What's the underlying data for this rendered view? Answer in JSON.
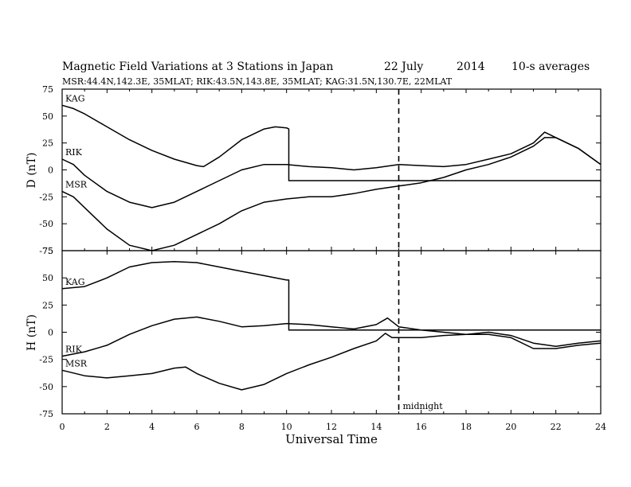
{
  "chart_data": {
    "type": "line",
    "title": "Magnetic Field Variations at 3 Stations in Japan",
    "title_date": "22 July",
    "title_year": "2014",
    "title_note": "10-s averages",
    "subtitle": "MSR:44.4N,142.3E, 35MLAT;  RIK:43.5N,143.8E, 35MLAT;  KAG:31.5N,130.7E, 22MLAT",
    "xlabel": "Universal Time",
    "xlim": [
      0,
      24
    ],
    "xticks": [
      "0",
      "2",
      "4",
      "6",
      "8",
      "10",
      "12",
      "14",
      "16",
      "18",
      "20",
      "22",
      "24"
    ],
    "midnight_marker": {
      "x": 15,
      "label": "midnight"
    },
    "panels": [
      {
        "ylabel": "D (nT)",
        "ylim": [
          -75,
          75
        ],
        "yticks": [
          "75",
          "50",
          "25",
          "0",
          "-25",
          "-50",
          "-75"
        ],
        "series": [
          {
            "name": "KAG",
            "points": [
              [
                0,
                60
              ],
              [
                0.5,
                57
              ],
              [
                1.0,
                52
              ],
              [
                2,
                40
              ],
              [
                3,
                28
              ],
              [
                4,
                18
              ],
              [
                5,
                10
              ],
              [
                6,
                4
              ],
              [
                6.3,
                3
              ],
              [
                7,
                12
              ],
              [
                8,
                28
              ],
              [
                9,
                38
              ],
              [
                9.5,
                40
              ],
              [
                10.0,
                39
              ],
              [
                10.1,
                38
              ],
              [
                10.1,
                -10
              ],
              [
                14,
                -10
              ],
              [
                18,
                -10
              ],
              [
                24,
                -10
              ]
            ]
          },
          {
            "name": "RIK",
            "points": [
              [
                0,
                10
              ],
              [
                0.5,
                5
              ],
              [
                1,
                -5
              ],
              [
                2,
                -20
              ],
              [
                3,
                -30
              ],
              [
                4,
                -35
              ],
              [
                5,
                -30
              ],
              [
                6,
                -20
              ],
              [
                7,
                -10
              ],
              [
                8,
                0
              ],
              [
                9,
                5
              ],
              [
                10,
                5
              ],
              [
                11,
                3
              ],
              [
                12,
                2
              ],
              [
                13,
                0
              ],
              [
                14,
                2
              ],
              [
                15,
                5
              ],
              [
                16,
                4
              ],
              [
                17,
                3
              ],
              [
                18,
                5
              ],
              [
                19,
                10
              ],
              [
                20,
                15
              ],
              [
                21,
                25
              ],
              [
                21.5,
                35
              ],
              [
                22,
                30
              ],
              [
                23,
                20
              ],
              [
                24,
                5
              ]
            ]
          },
          {
            "name": "MSR",
            "points": [
              [
                0,
                -20
              ],
              [
                0.5,
                -25
              ],
              [
                1,
                -35
              ],
              [
                2,
                -55
              ],
              [
                3,
                -70
              ],
              [
                4,
                -75
              ],
              [
                5,
                -70
              ],
              [
                6,
                -60
              ],
              [
                7,
                -50
              ],
              [
                8,
                -38
              ],
              [
                9,
                -30
              ],
              [
                10,
                -27
              ],
              [
                11,
                -25
              ],
              [
                12,
                -25
              ],
              [
                13,
                -22
              ],
              [
                14,
                -18
              ],
              [
                15,
                -15
              ],
              [
                16,
                -12
              ],
              [
                17,
                -7
              ],
              [
                18,
                0
              ],
              [
                19,
                5
              ],
              [
                20,
                12
              ],
              [
                21,
                22
              ],
              [
                21.5,
                30
              ],
              [
                22,
                30
              ],
              [
                23,
                20
              ],
              [
                24,
                5
              ]
            ]
          }
        ]
      },
      {
        "ylabel": "H (nT)",
        "ylim": [
          -75,
          75
        ],
        "yticks": [
          "75",
          "50",
          "25",
          "0",
          "-25",
          "-50",
          "-75"
        ],
        "series": [
          {
            "name": "KAG",
            "points": [
              [
                0,
                40
              ],
              [
                1,
                42
              ],
              [
                2,
                50
              ],
              [
                3,
                60
              ],
              [
                4,
                64
              ],
              [
                5,
                65
              ],
              [
                6,
                64
              ],
              [
                7,
                60
              ],
              [
                8,
                56
              ],
              [
                9,
                52
              ],
              [
                10,
                48
              ],
              [
                10.1,
                48
              ],
              [
                10.1,
                2
              ],
              [
                14,
                2
              ],
              [
                18,
                2
              ],
              [
                24,
                2
              ]
            ]
          },
          {
            "name": "RIK",
            "points": [
              [
                0,
                -22
              ],
              [
                1,
                -18
              ],
              [
                2,
                -12
              ],
              [
                3,
                -2
              ],
              [
                4,
                6
              ],
              [
                5,
                12
              ],
              [
                6,
                14
              ],
              [
                7,
                10
              ],
              [
                8,
                5
              ],
              [
                9,
                6
              ],
              [
                10,
                8
              ],
              [
                11,
                7
              ],
              [
                12,
                5
              ],
              [
                13,
                3
              ],
              [
                14,
                7
              ],
              [
                14.5,
                13
              ],
              [
                15,
                5
              ],
              [
                16,
                2
              ],
              [
                17,
                0
              ],
              [
                18,
                -2
              ],
              [
                19,
                -2
              ],
              [
                20,
                -5
              ],
              [
                21,
                -15
              ],
              [
                22,
                -15
              ],
              [
                23,
                -12
              ],
              [
                24,
                -10
              ]
            ]
          },
          {
            "name": "MSR",
            "points": [
              [
                0,
                -35
              ],
              [
                1,
                -40
              ],
              [
                2,
                -42
              ],
              [
                3,
                -40
              ],
              [
                4,
                -38
              ],
              [
                5,
                -33
              ],
              [
                5.5,
                -32
              ],
              [
                6,
                -38
              ],
              [
                7,
                -47
              ],
              [
                8,
                -53
              ],
              [
                9,
                -48
              ],
              [
                10,
                -38
              ],
              [
                11,
                -30
              ],
              [
                12,
                -23
              ],
              [
                13,
                -15
              ],
              [
                14,
                -8
              ],
              [
                14.4,
                -1
              ],
              [
                14.7,
                -5
              ],
              [
                15,
                -5
              ],
              [
                16,
                -5
              ],
              [
                17,
                -3
              ],
              [
                18,
                -2
              ],
              [
                19,
                0
              ],
              [
                20,
                -3
              ],
              [
                21,
                -10
              ],
              [
                22,
                -13
              ],
              [
                23,
                -10
              ],
              [
                24,
                -8
              ]
            ]
          }
        ]
      }
    ]
  }
}
